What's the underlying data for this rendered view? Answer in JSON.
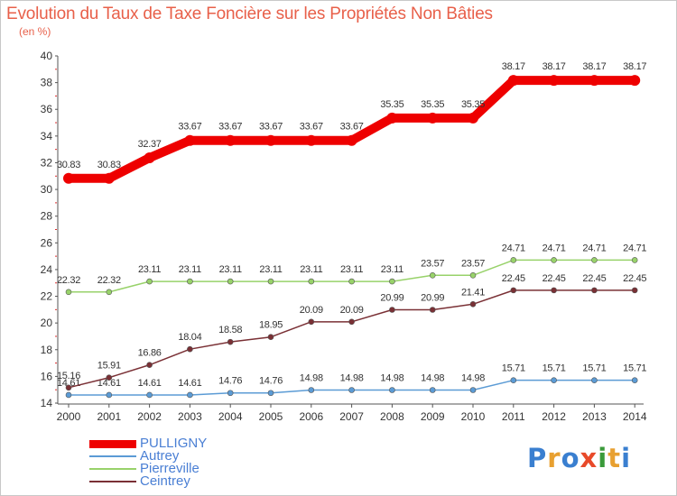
{
  "title": "Evolution du Taux de Taxe Foncière sur les Propriétés Non Bâties",
  "subtitle": "(en %)",
  "logo": {
    "letters": [
      "P",
      "r",
      "o",
      "x",
      "i",
      "t",
      "i"
    ],
    "colors": [
      "#3a7fd0",
      "#e8a030",
      "#3a7fd0",
      "#e84a2a",
      "#3a9a3a",
      "#e8a030",
      "#3a7fd0"
    ]
  },
  "chart_data": {
    "type": "line",
    "title": "Evolution du Taux de Taxe Foncière sur les Propriétés Non Bâties",
    "ylabel": "(en %)",
    "xlabel": "",
    "ylim": [
      14,
      40
    ],
    "yticks": [
      "14",
      "16",
      "18",
      "20",
      "22",
      "24",
      "26",
      "28",
      "30",
      "32",
      "34",
      "36",
      "38",
      "40"
    ],
    "categories": [
      "2000",
      "2001",
      "2002",
      "2003",
      "2004",
      "2005",
      "2006",
      "2007",
      "2008",
      "2009",
      "2010",
      "2011",
      "2012",
      "2013",
      "2014"
    ],
    "legend_position": "bottom-left",
    "series": [
      {
        "name": "PULLIGNY",
        "color": "#ee0000",
        "values": [
          30.83,
          30.83,
          32.37,
          33.67,
          33.67,
          33.67,
          33.67,
          33.67,
          35.35,
          35.35,
          35.35,
          38.17,
          38.17,
          38.17,
          38.17
        ],
        "labels": [
          "30.83",
          "30.83",
          "32.37",
          "33.67",
          "33.67",
          "33.67",
          "33.67",
          "33.67",
          "35.35",
          "35.35",
          "35.35",
          "38.17",
          "38.17",
          "38.17",
          "38.17"
        ]
      },
      {
        "name": "Autrey",
        "color": "#5b9bd5",
        "values": [
          14.61,
          14.61,
          14.61,
          14.61,
          14.76,
          14.76,
          14.98,
          14.98,
          14.98,
          14.98,
          14.98,
          15.71,
          15.71,
          15.71,
          15.71
        ],
        "labels": [
          "14.61",
          "14.61",
          "14.61",
          "14.61",
          "14.76",
          "14.76",
          "14.98",
          "14.98",
          "14.98",
          "14.98",
          "14.98",
          "15.71",
          "15.71",
          "15.71",
          "15.71"
        ]
      },
      {
        "name": "Pierreville",
        "color": "#98d26a",
        "values": [
          22.32,
          22.32,
          23.11,
          23.11,
          23.11,
          23.11,
          23.11,
          23.11,
          23.11,
          23.57,
          23.57,
          24.71,
          24.71,
          24.71,
          24.71
        ],
        "labels": [
          "22.32",
          "22.32",
          "23.11",
          "23.11",
          "23.11",
          "23.11",
          "23.11",
          "23.11",
          "23.11",
          "23.57",
          "23.57",
          "24.71",
          "24.71",
          "24.71",
          "24.71"
        ]
      },
      {
        "name": "Ceintrey",
        "color": "#7a3035",
        "values": [
          15.16,
          15.91,
          16.86,
          18.04,
          18.58,
          18.95,
          20.09,
          20.09,
          20.99,
          20.99,
          21.41,
          22.45,
          22.45,
          22.45,
          22.45
        ],
        "labels": [
          "15.16",
          "15.91",
          "16.86",
          "18.04",
          "18.58",
          "18.95",
          "20.09",
          "20.09",
          "20.99",
          "20.99",
          "21.41",
          "22.45",
          "22.45",
          "22.45",
          "22.45"
        ]
      }
    ]
  }
}
